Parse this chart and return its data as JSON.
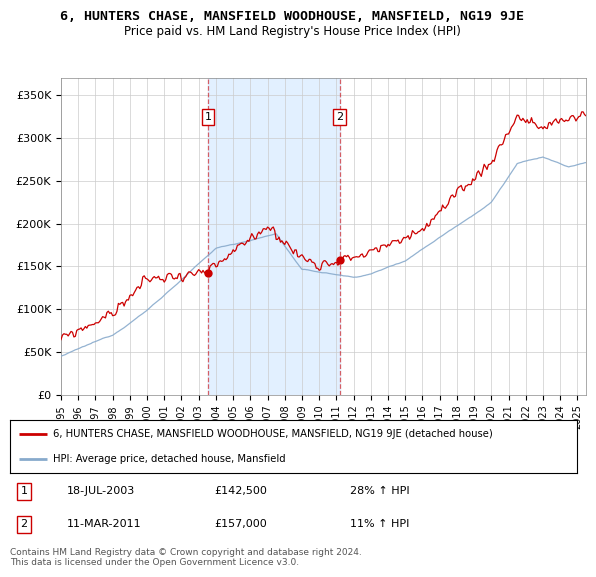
{
  "title": "6, HUNTERS CHASE, MANSFIELD WOODHOUSE, MANSFIELD, NG19 9JE",
  "subtitle": "Price paid vs. HM Land Registry's House Price Index (HPI)",
  "ylabel_ticks": [
    "£0",
    "£50K",
    "£100K",
    "£150K",
    "£200K",
    "£250K",
    "£300K",
    "£350K"
  ],
  "ytick_vals": [
    0,
    50000,
    100000,
    150000,
    200000,
    250000,
    300000,
    350000
  ],
  "ylim": [
    0,
    370000
  ],
  "xlim_start": 1995.0,
  "xlim_end": 2025.5,
  "sale1_date": 2003.54,
  "sale1_price": 142500,
  "sale2_date": 2011.19,
  "sale2_price": 157000,
  "legend_line1": "6, HUNTERS CHASE, MANSFIELD WOODHOUSE, MANSFIELD, NG19 9JE (detached house)",
  "legend_line2": "HPI: Average price, detached house, Mansfield",
  "annotation1_label": "1",
  "annotation1_date": "18-JUL-2003",
  "annotation1_price": "£142,500",
  "annotation1_hpi": "28% ↑ HPI",
  "annotation2_label": "2",
  "annotation2_date": "11-MAR-2011",
  "annotation2_price": "£157,000",
  "annotation2_hpi": "11% ↑ HPI",
  "footer": "Contains HM Land Registry data © Crown copyright and database right 2024.\nThis data is licensed under the Open Government Licence v3.0.",
  "red_color": "#cc0000",
  "blue_color": "#88aacc",
  "shade_color": "#ddeeff",
  "box_color": "#cc0000"
}
